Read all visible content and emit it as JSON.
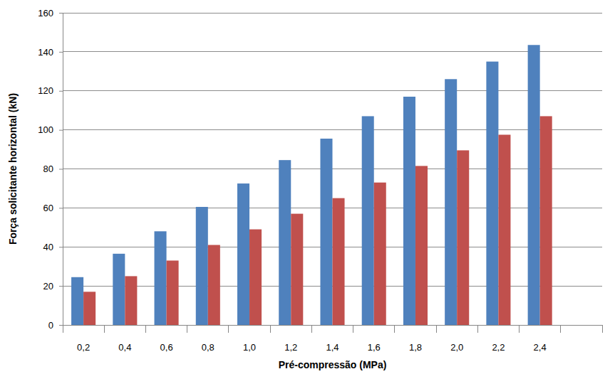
{
  "chart_data": {
    "type": "bar",
    "x_label": "Pré-compressão (MPa)",
    "y_label": "Força solicitante horizontal (kN)",
    "categories": [
      "0,2",
      "0,4",
      "0,6",
      "0,8",
      "1,0",
      "1,2",
      "1,4",
      "1,6",
      "1,8",
      "2,0",
      "2,2",
      "2,4",
      null
    ],
    "series": [
      {
        "color": "#4f81bd",
        "values": [
          24.5,
          36.5,
          48,
          60.5,
          72.5,
          84.5,
          95.5,
          107,
          117,
          126,
          135,
          143.5,
          null
        ]
      },
      {
        "color": "#c0504d",
        "values": [
          17,
          25,
          33,
          41,
          49,
          57,
          65,
          73,
          81.5,
          89.5,
          97.5,
          107,
          null
        ]
      }
    ],
    "ylim": [
      0,
      160
    ],
    "yticks": [
      0,
      20,
      40,
      60,
      80,
      100,
      120,
      140,
      160
    ],
    "grid": true
  }
}
